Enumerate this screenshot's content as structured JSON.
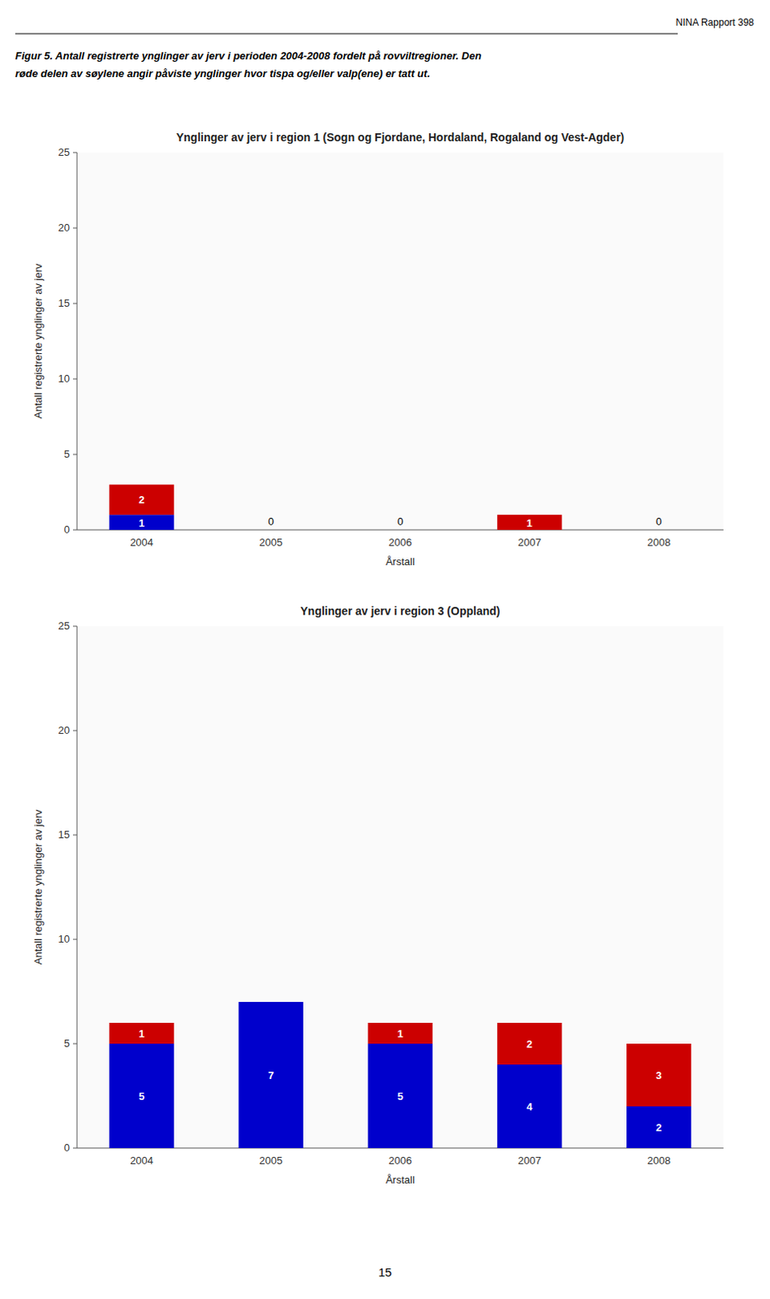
{
  "page_texts": {
    "running_head": "NINA Rapport 398",
    "caption": [
      "Figur 5. Antall registrerte ynglinger av jerv i perioden 2004-2008 fordelt på rovviltregioner. Den",
      "røde delen av søylene angir påviste ynglinger hvor tispa og/eller valp(ene) er tatt ut."
    ],
    "page_number": "15"
  },
  "chart_data": [
    {
      "type": "bar",
      "stacked": true,
      "data_labels": true,
      "grid": false,
      "title": "Ynglinger av jerv i region 1 (Sogn og Fjordane, Hordaland, Rogaland og Vest-Agder)",
      "xlabel": "Årstall",
      "ylabel": "Antall registrerte ynglinger av jerv",
      "categories": [
        "2004",
        "2005",
        "2006",
        "2007",
        "2008"
      ],
      "series": [
        {
          "color": "#0000cc",
          "values": [
            1,
            0,
            0,
            0,
            0
          ]
        },
        {
          "color": "#cc0000",
          "values": [
            2,
            0,
            0,
            1,
            0
          ]
        }
      ],
      "ylim": [
        0,
        25
      ],
      "yticks": [
        0,
        5,
        10,
        15,
        20,
        25
      ]
    },
    {
      "type": "bar",
      "stacked": true,
      "data_labels": true,
      "grid": false,
      "title": "Ynglinger av jerv i region 3 (Oppland)",
      "xlabel": "Årstall",
      "ylabel": "Antall registrerte ynglinger av jerv",
      "categories": [
        "2004",
        "2005",
        "2006",
        "2007",
        "2008"
      ],
      "series": [
        {
          "color": "#0000cc",
          "values": [
            5,
            7,
            5,
            4,
            2
          ]
        },
        {
          "color": "#cc0000",
          "values": [
            1,
            0,
            1,
            2,
            3
          ]
        }
      ],
      "ylim": [
        0,
        25
      ],
      "yticks": [
        0,
        5,
        10,
        15,
        20,
        25
      ]
    }
  ]
}
